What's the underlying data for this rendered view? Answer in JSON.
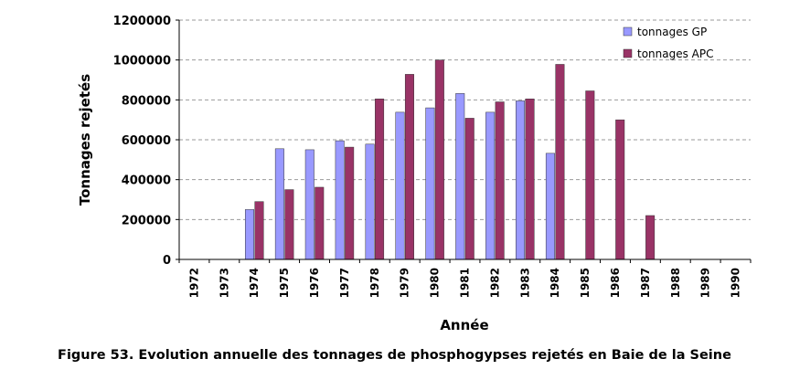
{
  "caption": "Figure 53. Evolution annuelle des tonnages de phosphogypses rejetés en Baie de la Seine",
  "chart_data": {
    "type": "bar",
    "title": "",
    "xlabel": "Année",
    "ylabel": "Tonnages rejetés",
    "ylim": [
      0,
      1200000
    ],
    "yticks": [
      0,
      200000,
      400000,
      600000,
      800000,
      1000000,
      1200000
    ],
    "grid": true,
    "legend_position": "top-right",
    "categories": [
      "1972",
      "1973",
      "1974",
      "1975",
      "1976",
      "1977",
      "1978",
      "1979",
      "1980",
      "1981",
      "1982",
      "1983",
      "1984",
      "1985",
      "1986",
      "1987",
      "1988",
      "1989",
      "1990"
    ],
    "series": [
      {
        "name": "tonnages GP",
        "color": "#9999ff",
        "values": [
          0,
          0,
          250000,
          555000,
          550000,
          595000,
          578000,
          738000,
          760000,
          832000,
          738000,
          795000,
          532000,
          0,
          0,
          0,
          0,
          0,
          0
        ]
      },
      {
        "name": "tonnages APC",
        "color": "#993366",
        "values": [
          0,
          0,
          290000,
          350000,
          362000,
          563000,
          805000,
          928000,
          1000000,
          708000,
          790000,
          805000,
          978000,
          845000,
          700000,
          220000,
          0,
          0,
          0
        ]
      }
    ]
  }
}
